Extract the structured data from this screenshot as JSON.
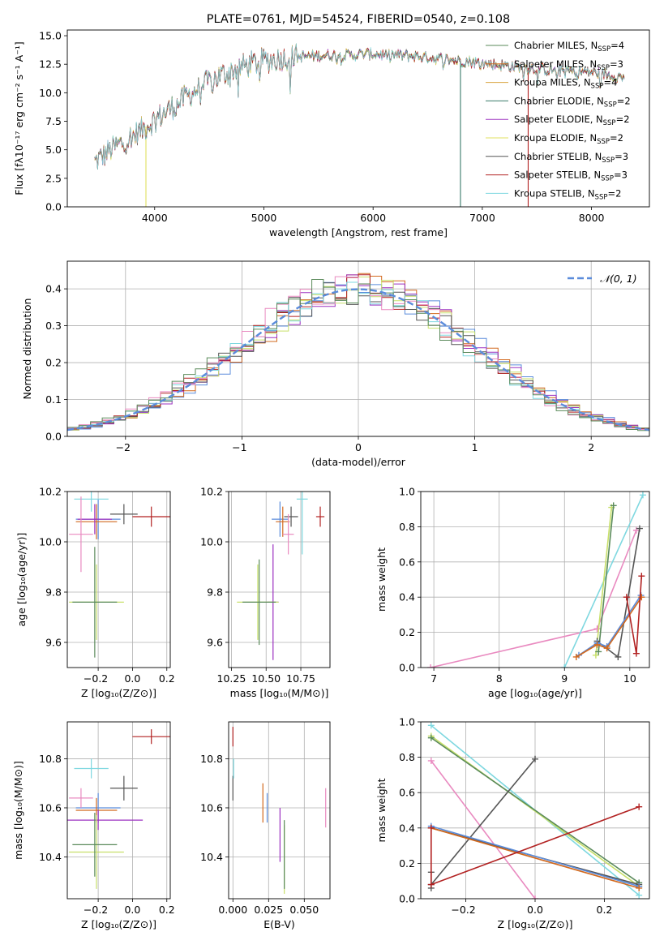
{
  "chart_data": [
    {
      "id": "spectrum",
      "type": "line",
      "title": "PLATE=0761, MJD=54524, FIBERID=0540, z=0.108",
      "xlabel": "wavelength [Angstrom, rest frame]",
      "ylabel": "Flux [fλ10⁻¹⁷ erg cm⁻² s⁻¹ A⁻¹]",
      "xlim": [
        3200,
        8530
      ],
      "ylim": [
        0,
        15.5
      ],
      "xticks": [
        4000,
        5000,
        6000,
        7000,
        8000
      ],
      "yticks": [
        0.0,
        2.5,
        5.0,
        7.5,
        10.0,
        12.5,
        15.0
      ],
      "x": [
        3450,
        3600,
        3800,
        4000,
        4200,
        4400,
        4600,
        4800,
        5000,
        5200,
        5400,
        5600,
        5800,
        6000,
        6200,
        6400,
        6600,
        6800,
        7000,
        7200,
        7400,
        7600,
        7800,
        8000,
        8200,
        8300
      ],
      "trend": [
        3.9,
        5.0,
        6.2,
        7.6,
        9.0,
        10.4,
        11.5,
        12.3,
        12.8,
        13.1,
        13.2,
        13.3,
        13.3,
        13.4,
        13.3,
        13.2,
        13.0,
        12.8,
        12.6,
        12.4,
        12.2,
        12.0,
        11.9,
        11.8,
        11.5,
        11.3
      ],
      "legend_loc": "right",
      "grid": false,
      "series": [
        {
          "name": "Chabrier MILES, N",
          "sub": "SSP",
          "eq": "=4",
          "color": "#5a8a5a",
          "zero_at": null
        },
        {
          "name": "Salpeter MILES, N",
          "sub": "SSP",
          "eq": "=3",
          "color": "#d2691e",
          "zero_at": null
        },
        {
          "name": "Kroupa MILES, N",
          "sub": "SSP",
          "eq": "=4",
          "color": "#d9a441",
          "zero_at": null
        },
        {
          "name": "Chabrier ELODIE, N",
          "sub": "SSP",
          "eq": "=2",
          "color": "#3a7a6a",
          "zero_at": 6800
        },
        {
          "name": "Salpeter ELODIE, N",
          "sub": "SSP",
          "eq": "=2",
          "color": "#9b30c0",
          "zero_at": null
        },
        {
          "name": "Kroupa ELODIE, N",
          "sub": "SSP",
          "eq": "=2",
          "color": "#e0e060",
          "zero_at": 3920
        },
        {
          "name": "Chabrier STELIB, N",
          "sub": "SSP",
          "eq": "=3",
          "color": "#555555",
          "zero_at": null
        },
        {
          "name": "Salpeter STELIB, N",
          "sub": "SSP",
          "eq": "=3",
          "color": "#b22222",
          "zero_at": 7420
        },
        {
          "name": "Kroupa STELIB, N",
          "sub": "SSP",
          "eq": "=2",
          "color": "#7fd8e0",
          "zero_at": null
        }
      ]
    },
    {
      "id": "residuals",
      "type": "line",
      "xlabel": "(data-model)/error",
      "ylabel": "Normed distribution",
      "xlim": [
        -2.5,
        2.5
      ],
      "ylim": [
        0,
        0.475
      ],
      "xticks": [
        -2,
        -1,
        0,
        1,
        2
      ],
      "yticks": [
        0.0,
        0.1,
        0.2,
        0.3,
        0.4
      ],
      "grid": true,
      "bin_width": 0.1,
      "legend_loc": "upper right",
      "reference": {
        "name": "𝒩(0, 1)",
        "mean": 0,
        "sigma": 1,
        "color": "#5b8cdb"
      },
      "hist_colors": [
        "#5b8cdb",
        "#d2691e",
        "#9b30c0",
        "#c8e06a",
        "#555555",
        "#b22222",
        "#7fd8e0",
        "#e98ac0",
        "#5a8a5a"
      ]
    },
    {
      "id": "age-vs-Z",
      "type": "scatter",
      "xlabel": "Z [log₁₀(Z/Z⊙)]",
      "ylabel": "age  [log₁₀(age/yr)]",
      "xlim": [
        -0.38,
        0.22
      ],
      "ylim": [
        9.5,
        10.2
      ],
      "xticks": [
        -0.2,
        0.0,
        0.2
      ],
      "yticks": [
        9.6,
        9.8,
        10.0,
        10.2
      ],
      "grid": true,
      "points": [
        {
          "x": -0.2,
          "y": 10.09,
          "xerr": 0.13,
          "yerr": 0.08,
          "color": "#5b8cdb"
        },
        {
          "x": -0.21,
          "y": 10.08,
          "xerr": 0.12,
          "yerr": 0.07,
          "color": "#d2691e"
        },
        {
          "x": -0.22,
          "y": 10.09,
          "xerr": 0.1,
          "yerr": 0.06,
          "color": "#9b30c0"
        },
        {
          "x": -0.21,
          "y": 9.76,
          "xerr": 0.16,
          "yerr": 0.15,
          "color": "#c8e06a"
        },
        {
          "x": -0.05,
          "y": 10.11,
          "xerr": 0.08,
          "yerr": 0.04,
          "color": "#555555"
        },
        {
          "x": 0.11,
          "y": 10.1,
          "xerr": 0.11,
          "yerr": 0.04,
          "color": "#b22222"
        },
        {
          "x": -0.24,
          "y": 10.17,
          "xerr": 0.1,
          "yerr": 0.05,
          "color": "#7fd8e0"
        },
        {
          "x": -0.3,
          "y": 10.03,
          "xerr": 0.07,
          "yerr": 0.15,
          "color": "#e98ac0"
        },
        {
          "x": -0.22,
          "y": 9.76,
          "xerr": 0.13,
          "yerr": 0.22,
          "color": "#5a8a5a"
        }
      ]
    },
    {
      "id": "age-vs-mass",
      "type": "scatter",
      "xlabel": "mass [log₁₀(M/M⊙)]",
      "ylabel": "",
      "xlim": [
        10.23,
        10.96
      ],
      "ylim": [
        9.5,
        10.2
      ],
      "xticks": [
        10.25,
        10.5,
        10.75
      ],
      "yticks": [
        9.6,
        9.8,
        10.0,
        10.2
      ],
      "grid": true,
      "points": [
        {
          "x": 10.6,
          "y": 10.09,
          "xerr": 0.06,
          "yerr": 0.07,
          "color": "#5b8cdb"
        },
        {
          "x": 10.62,
          "y": 10.08,
          "xerr": 0.05,
          "yerr": 0.06,
          "color": "#d2691e"
        },
        {
          "x": 10.55,
          "y": 9.76,
          "xerr": 0.04,
          "yerr": 0.23,
          "color": "#9b30c0"
        },
        {
          "x": 10.44,
          "y": 9.76,
          "xerr": 0.15,
          "yerr": 0.15,
          "color": "#c8e06a"
        },
        {
          "x": 10.68,
          "y": 10.1,
          "xerr": 0.05,
          "yerr": 0.04,
          "color": "#555555"
        },
        {
          "x": 10.89,
          "y": 10.1,
          "xerr": 0.03,
          "yerr": 0.04,
          "color": "#b22222"
        },
        {
          "x": 10.76,
          "y": 10.17,
          "xerr": 0.04,
          "yerr": 0.22,
          "color": "#7fd8e0"
        },
        {
          "x": 10.66,
          "y": 10.03,
          "xerr": 0.04,
          "yerr": 0.08,
          "color": "#e98ac0"
        },
        {
          "x": 10.45,
          "y": 9.76,
          "xerr": 0.12,
          "yerr": 0.17,
          "color": "#5a8a5a"
        }
      ]
    },
    {
      "id": "mass-weight-vs-age",
      "type": "line",
      "xlabel": "age  [log₁₀(age/yr)]",
      "ylabel": "mass weight",
      "xlim": [
        6.8,
        10.3
      ],
      "ylim": [
        0,
        1.0
      ],
      "xticks": [
        7,
        8,
        9,
        10
      ],
      "yticks": [
        0.0,
        0.2,
        0.4,
        0.6,
        0.8,
        1.0
      ],
      "grid": true,
      "series": [
        {
          "color": "#e98ac0",
          "x": [
            6.95,
            9.5,
            10.1
          ],
          "y": [
            0.0,
            0.22,
            0.78
          ]
        },
        {
          "color": "#7fd8e0",
          "x": [
            9.0,
            10.2
          ],
          "y": [
            0.0,
            0.98
          ]
        },
        {
          "color": "#c8e06a",
          "x": [
            9.48,
            9.72
          ],
          "y": [
            0.07,
            0.91
          ]
        },
        {
          "color": "#5a8a5a",
          "x": [
            9.52,
            9.75
          ],
          "y": [
            0.09,
            0.92
          ]
        },
        {
          "color": "#555555",
          "x": [
            9.5,
            9.82,
            10.15
          ],
          "y": [
            0.15,
            0.06,
            0.79
          ]
        },
        {
          "color": "#5b8cdb",
          "x": [
            9.22,
            9.5,
            9.65,
            10.17
          ],
          "y": [
            0.07,
            0.14,
            0.12,
            0.41
          ]
        },
        {
          "color": "#d2691e",
          "x": [
            9.18,
            9.5,
            9.65,
            10.18
          ],
          "y": [
            0.06,
            0.13,
            0.11,
            0.4
          ]
        },
        {
          "color": "#b22222",
          "x": [
            9.95,
            10.1,
            10.18
          ],
          "y": [
            0.4,
            0.08,
            0.52
          ]
        }
      ]
    },
    {
      "id": "mass-vs-Z",
      "type": "scatter",
      "xlabel": "Z [log₁₀(Z/Z⊙)]",
      "ylabel": "mass [log₁₀(M/M⊙)]",
      "xlim": [
        -0.38,
        0.22
      ],
      "ylim": [
        10.23,
        10.95
      ],
      "xticks": [
        -0.2,
        0.0,
        0.2
      ],
      "yticks": [
        10.4,
        10.6,
        10.8
      ],
      "grid": true,
      "points": [
        {
          "x": -0.2,
          "y": 10.6,
          "xerr": 0.13,
          "yerr": 0.06,
          "color": "#5b8cdb"
        },
        {
          "x": -0.21,
          "y": 10.59,
          "xerr": 0.12,
          "yerr": 0.05,
          "color": "#d2691e"
        },
        {
          "x": -0.2,
          "y": 10.55,
          "xerr": 0.26,
          "yerr": 0.04,
          "color": "#9b30c0"
        },
        {
          "x": -0.21,
          "y": 10.42,
          "xerr": 0.16,
          "yerr": 0.15,
          "color": "#c8e06a"
        },
        {
          "x": -0.05,
          "y": 10.68,
          "xerr": 0.08,
          "yerr": 0.05,
          "color": "#555555"
        },
        {
          "x": 0.11,
          "y": 10.89,
          "xerr": 0.11,
          "yerr": 0.03,
          "color": "#b22222"
        },
        {
          "x": -0.24,
          "y": 10.76,
          "xerr": 0.1,
          "yerr": 0.04,
          "color": "#7fd8e0"
        },
        {
          "x": -0.3,
          "y": 10.64,
          "xerr": 0.07,
          "yerr": 0.04,
          "color": "#e98ac0"
        },
        {
          "x": -0.22,
          "y": 10.45,
          "xerr": 0.13,
          "yerr": 0.13,
          "color": "#5a8a5a"
        }
      ]
    },
    {
      "id": "mass-vs-ebv",
      "type": "scatter",
      "xlabel": "E(B-V)",
      "ylabel": "",
      "xlim": [
        -0.003,
        0.068
      ],
      "ylim": [
        10.23,
        10.95
      ],
      "xticks": [
        0.0,
        0.025,
        0.05
      ],
      "ytick_labels": [
        "10.4",
        "10.6",
        "10.8"
      ],
      "xtick_labels": [
        "0.000",
        "0.025",
        "0.050"
      ],
      "yticks": [
        10.4,
        10.6,
        10.8
      ],
      "grid": true,
      "points": [
        {
          "x": 0.0,
          "y": 10.89,
          "xerr": 0,
          "yerr": 0.04,
          "color": "#b22222"
        },
        {
          "x": 0.0,
          "y": 10.68,
          "xerr": 0,
          "yerr": 0.05,
          "color": "#555555"
        },
        {
          "x": 0.0005,
          "y": 10.76,
          "xerr": 0,
          "yerr": 0.04,
          "color": "#7fd8e0"
        },
        {
          "x": 0.024,
          "y": 10.6,
          "xerr": 0,
          "yerr": 0.06,
          "color": "#5b8cdb"
        },
        {
          "x": 0.021,
          "y": 10.62,
          "xerr": 0,
          "yerr": 0.08,
          "color": "#d2691e"
        },
        {
          "x": 0.033,
          "y": 10.49,
          "xerr": 0,
          "yerr": 0.11,
          "color": "#9b30c0"
        },
        {
          "x": 0.036,
          "y": 10.39,
          "xerr": 0,
          "yerr": 0.14,
          "color": "#c8e06a"
        },
        {
          "x": 0.036,
          "y": 10.41,
          "xerr": 0,
          "yerr": 0.14,
          "color": "#5a8a5a"
        },
        {
          "x": 0.065,
          "y": 10.6,
          "xerr": 0,
          "yerr": 0.08,
          "color": "#e98ac0"
        }
      ]
    },
    {
      "id": "mass-weight-vs-Z",
      "type": "line",
      "xlabel": "Z [log₁₀(Z/Z⊙)]",
      "ylabel": "mass weight",
      "xlim": [
        -0.33,
        0.33
      ],
      "ylim": [
        0,
        1.0
      ],
      "xticks": [
        -0.2,
        0.0,
        0.2
      ],
      "yticks": [
        0.0,
        0.2,
        0.4,
        0.6,
        0.8,
        1.0
      ],
      "grid": true,
      "series": [
        {
          "color": "#7fd8e0",
          "x": [
            -0.3,
            0.3
          ],
          "y": [
            0.98,
            0.02
          ]
        },
        {
          "color": "#c8e06a",
          "x": [
            -0.3,
            0.3
          ],
          "y": [
            0.92,
            0.07
          ]
        },
        {
          "color": "#5a8a5a",
          "x": [
            -0.3,
            0.3
          ],
          "y": [
            0.91,
            0.09
          ]
        },
        {
          "color": "#e98ac0",
          "x": [
            -0.3,
            0.0
          ],
          "y": [
            0.78,
            0.0
          ]
        },
        {
          "color": "#555555",
          "x": [
            -0.3,
            -0.3,
            -0.3,
            0.0
          ],
          "y": [
            0.06,
            0.15,
            0.08,
            0.79
          ]
        },
        {
          "color": "#555555",
          "x": [
            -0.3,
            0.3
          ],
          "y": [
            0.4,
            0.08
          ]
        },
        {
          "color": "#5b8cdb",
          "x": [
            -0.3,
            0.3
          ],
          "y": [
            0.41,
            0.07
          ]
        },
        {
          "color": "#d2691e",
          "x": [
            -0.3,
            0.3
          ],
          "y": [
            0.4,
            0.06
          ]
        },
        {
          "color": "#b22222",
          "x": [
            -0.3,
            -0.3,
            0.3
          ],
          "y": [
            0.4,
            0.08,
            0.52
          ]
        }
      ]
    }
  ]
}
